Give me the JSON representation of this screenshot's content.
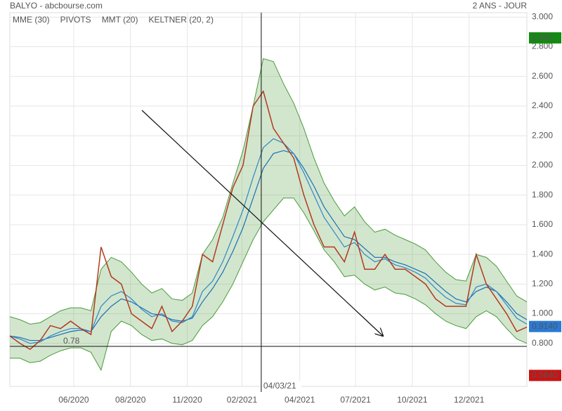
{
  "chart_data": {
    "type": "line",
    "title": "BALYO - abcbourse.com",
    "period": "2 ANS - JOUR",
    "x": [
      0,
      1,
      2,
      3,
      4,
      5,
      6,
      7,
      8,
      9,
      10,
      11,
      12,
      13,
      14,
      15,
      16,
      17,
      18,
      19,
      20,
      21,
      22,
      23,
      24,
      25,
      26,
      27,
      28,
      29,
      30,
      31,
      32,
      33,
      34,
      35,
      36,
      37,
      38,
      39,
      40,
      41,
      42,
      43,
      44,
      45,
      46,
      47,
      48,
      49,
      50,
      51
    ],
    "xlim": [
      0,
      51
    ],
    "xticks": [
      {
        "value": 6.3,
        "label": "06/2020"
      },
      {
        "value": 11.9,
        "label": "08/2020"
      },
      {
        "value": 17.5,
        "label": "11/2020"
      },
      {
        "value": 22.9,
        "label": "02/2021"
      },
      {
        "value": 28.6,
        "label": "04/2021"
      },
      {
        "value": 34.1,
        "label": "07/2021"
      },
      {
        "value": 39.7,
        "label": "10/2021"
      },
      {
        "value": 45.3,
        "label": "12/2021"
      }
    ],
    "ylim": [
      0.51,
      3.03
    ],
    "yticks": [
      {
        "value": 0.8,
        "label": "0.800"
      },
      {
        "value": 1,
        "label": "1.000"
      },
      {
        "value": 1.2,
        "label": "1.200"
      },
      {
        "value": 1.4,
        "label": "1.400"
      },
      {
        "value": 1.6,
        "label": "1.600"
      },
      {
        "value": 1.8,
        "label": "1.800"
      },
      {
        "value": 2,
        "label": "2.000"
      },
      {
        "value": 2.2,
        "label": "2.200"
      },
      {
        "value": 2.4,
        "label": "2.400"
      },
      {
        "value": 2.6,
        "label": "2.600"
      },
      {
        "value": 2.8,
        "label": "2.800"
      },
      {
        "value": 3,
        "label": "3.000"
      }
    ],
    "grid": true,
    "close": {
      "color": "#b23a1e",
      "values": [
        0.85,
        0.8,
        0.76,
        0.82,
        0.92,
        0.9,
        0.95,
        0.9,
        0.86,
        1.45,
        1.25,
        1.2,
        1.0,
        0.95,
        0.9,
        1.05,
        0.88,
        0.95,
        1.05,
        1.4,
        1.35,
        1.6,
        1.85,
        2.0,
        2.4,
        2.5,
        2.25,
        2.15,
        2.05,
        1.8,
        1.6,
        1.45,
        1.45,
        1.35,
        1.55,
        1.3,
        1.3,
        1.4,
        1.3,
        1.3,
        1.25,
        1.2,
        1.1,
        1.05,
        1.05,
        1.05,
        1.4,
        1.2,
        1.1,
        1.0,
        0.88,
        0.91
      ]
    },
    "series": [
      {
        "name": "MME (30)",
        "color": "#1a6fb5",
        "values": [
          0.85,
          0.84,
          0.82,
          0.82,
          0.84,
          0.86,
          0.88,
          0.89,
          0.88,
          0.98,
          1.05,
          1.1,
          1.08,
          1.04,
          1.0,
          0.99,
          0.96,
          0.95,
          0.97,
          1.08,
          1.17,
          1.28,
          1.42,
          1.58,
          1.78,
          1.98,
          2.08,
          2.1,
          2.08,
          1.98,
          1.86,
          1.72,
          1.62,
          1.52,
          1.5,
          1.44,
          1.38,
          1.38,
          1.35,
          1.33,
          1.3,
          1.27,
          1.21,
          1.15,
          1.1,
          1.08,
          1.15,
          1.18,
          1.15,
          1.08,
          1.0,
          0.96
        ]
      },
      {
        "name": "MMT (20)",
        "color": "#2f86c6",
        "values": [
          0.85,
          0.83,
          0.8,
          0.81,
          0.85,
          0.88,
          0.9,
          0.9,
          0.88,
          1.05,
          1.12,
          1.15,
          1.1,
          1.03,
          0.98,
          1.0,
          0.95,
          0.94,
          0.98,
          1.15,
          1.22,
          1.35,
          1.52,
          1.7,
          1.92,
          2.12,
          2.18,
          2.15,
          2.08,
          1.95,
          1.8,
          1.65,
          1.55,
          1.45,
          1.48,
          1.4,
          1.35,
          1.37,
          1.33,
          1.31,
          1.28,
          1.24,
          1.17,
          1.11,
          1.07,
          1.06,
          1.18,
          1.2,
          1.15,
          1.06,
          0.97,
          0.93
        ]
      }
    ],
    "pivots": {
      "name": "PIVOTS",
      "color": "#555555"
    },
    "keltner": {
      "name": "KELTNER (20, 2)",
      "color": "#4a9a3a",
      "upper": [
        0.98,
        0.96,
        0.93,
        0.94,
        0.98,
        1.02,
        1.04,
        1.04,
        1.02,
        1.3,
        1.38,
        1.35,
        1.28,
        1.2,
        1.14,
        1.17,
        1.1,
        1.09,
        1.14,
        1.4,
        1.5,
        1.65,
        1.88,
        2.1,
        2.4,
        2.72,
        2.7,
        2.55,
        2.42,
        2.25,
        2.05,
        1.88,
        1.76,
        1.66,
        1.72,
        1.62,
        1.55,
        1.57,
        1.53,
        1.5,
        1.47,
        1.43,
        1.35,
        1.28,
        1.23,
        1.22,
        1.4,
        1.38,
        1.32,
        1.22,
        1.12,
        1.08
      ],
      "lower": [
        0.7,
        0.7,
        0.67,
        0.68,
        0.72,
        0.75,
        0.77,
        0.77,
        0.74,
        0.62,
        0.88,
        0.95,
        0.92,
        0.86,
        0.82,
        0.83,
        0.8,
        0.79,
        0.82,
        0.92,
        0.98,
        1.08,
        1.2,
        1.35,
        1.5,
        1.62,
        1.7,
        1.78,
        1.78,
        1.68,
        1.56,
        1.43,
        1.35,
        1.25,
        1.26,
        1.2,
        1.16,
        1.18,
        1.14,
        1.13,
        1.1,
        1.06,
        1.0,
        0.95,
        0.92,
        0.9,
        0.98,
        1.02,
        0.98,
        0.9,
        0.83,
        0.8
      ]
    },
    "level": {
      "value": 0.78,
      "label": "0.78"
    },
    "crosshair": {
      "value": 24.8,
      "label": "04/03/21"
    },
    "price_labels": [
      {
        "value": 2.86,
        "label": "2.860",
        "color": "#138a13"
      },
      {
        "value": 0.914,
        "label": "0.9140",
        "color": "#2a7ad4"
      },
      {
        "value": 0.584,
        "label": "0.5840",
        "color": "#c81414"
      }
    ]
  }
}
